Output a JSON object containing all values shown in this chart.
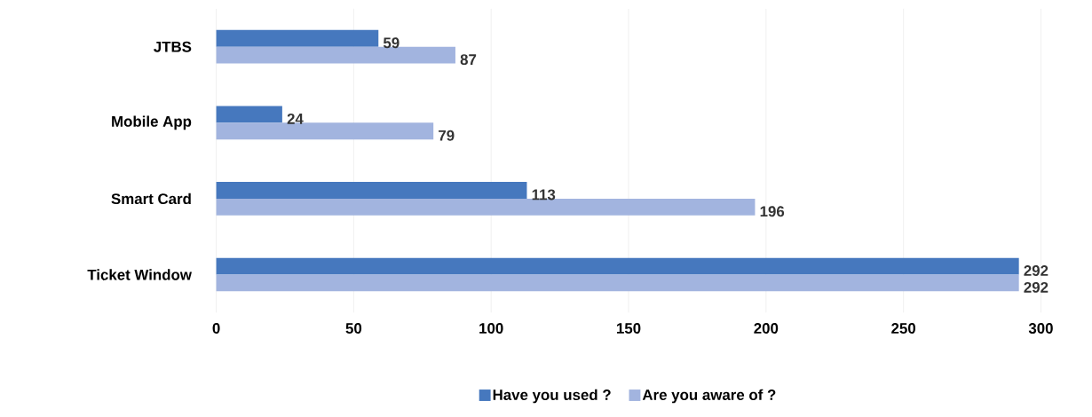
{
  "chart_data": {
    "type": "bar",
    "orientation": "horizontal",
    "categories": [
      "JTBS",
      "Mobile App",
      "Smart Card",
      "Ticket Window"
    ],
    "series": [
      {
        "name": "Have you used ?",
        "color": "#4678be",
        "values": [
          59,
          24,
          113,
          292
        ]
      },
      {
        "name": "Are you aware of ?",
        "color": "#a2b4df",
        "values": [
          87,
          79,
          196,
          292
        ]
      }
    ],
    "xlim": [
      0,
      300
    ],
    "xticks": [
      0,
      50,
      100,
      150,
      200,
      250,
      300
    ],
    "grid": "x",
    "legend": "bottom",
    "data_labels": true
  }
}
